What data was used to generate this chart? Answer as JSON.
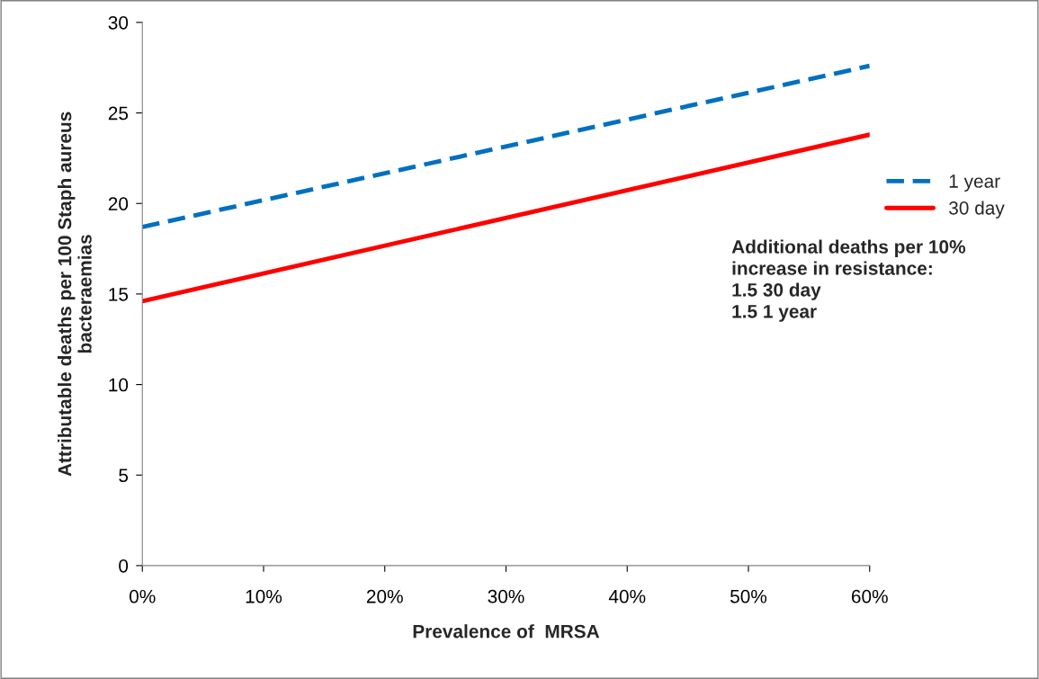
{
  "chart_data": {
    "type": "line",
    "xlabel": "Prevalence of  MRSA",
    "ylabel": "Attributable deaths per 100 Staph aureus\nbacteraemias",
    "x": [
      0,
      60
    ],
    "series": [
      {
        "name": "1 year",
        "color": "#0070c0",
        "values": [
          18.7,
          27.6
        ],
        "line_style": "dashed"
      },
      {
        "name": "30 day",
        "color": "#ff0000",
        "values": [
          14.6,
          23.8
        ],
        "line_style": "solid"
      }
    ],
    "xlim": [
      0,
      60
    ],
    "xticks": [
      {
        "value": 0,
        "label": "0%"
      },
      {
        "value": 10,
        "label": "10%"
      },
      {
        "value": 20,
        "label": "20%"
      },
      {
        "value": 30,
        "label": "30%"
      },
      {
        "value": 40,
        "label": "40%"
      },
      {
        "value": 50,
        "label": "50%"
      },
      {
        "value": 60,
        "label": "60%"
      }
    ],
    "ylim": [
      0,
      30
    ],
    "yticks": [
      0,
      5,
      10,
      15,
      20,
      25,
      30
    ],
    "grid": false,
    "legend": "right",
    "marker": "none",
    "annotations": [
      "Additional deaths per 10%\nincrease in resistance:\n1.5 30 day\n1.5 1 year"
    ]
  }
}
